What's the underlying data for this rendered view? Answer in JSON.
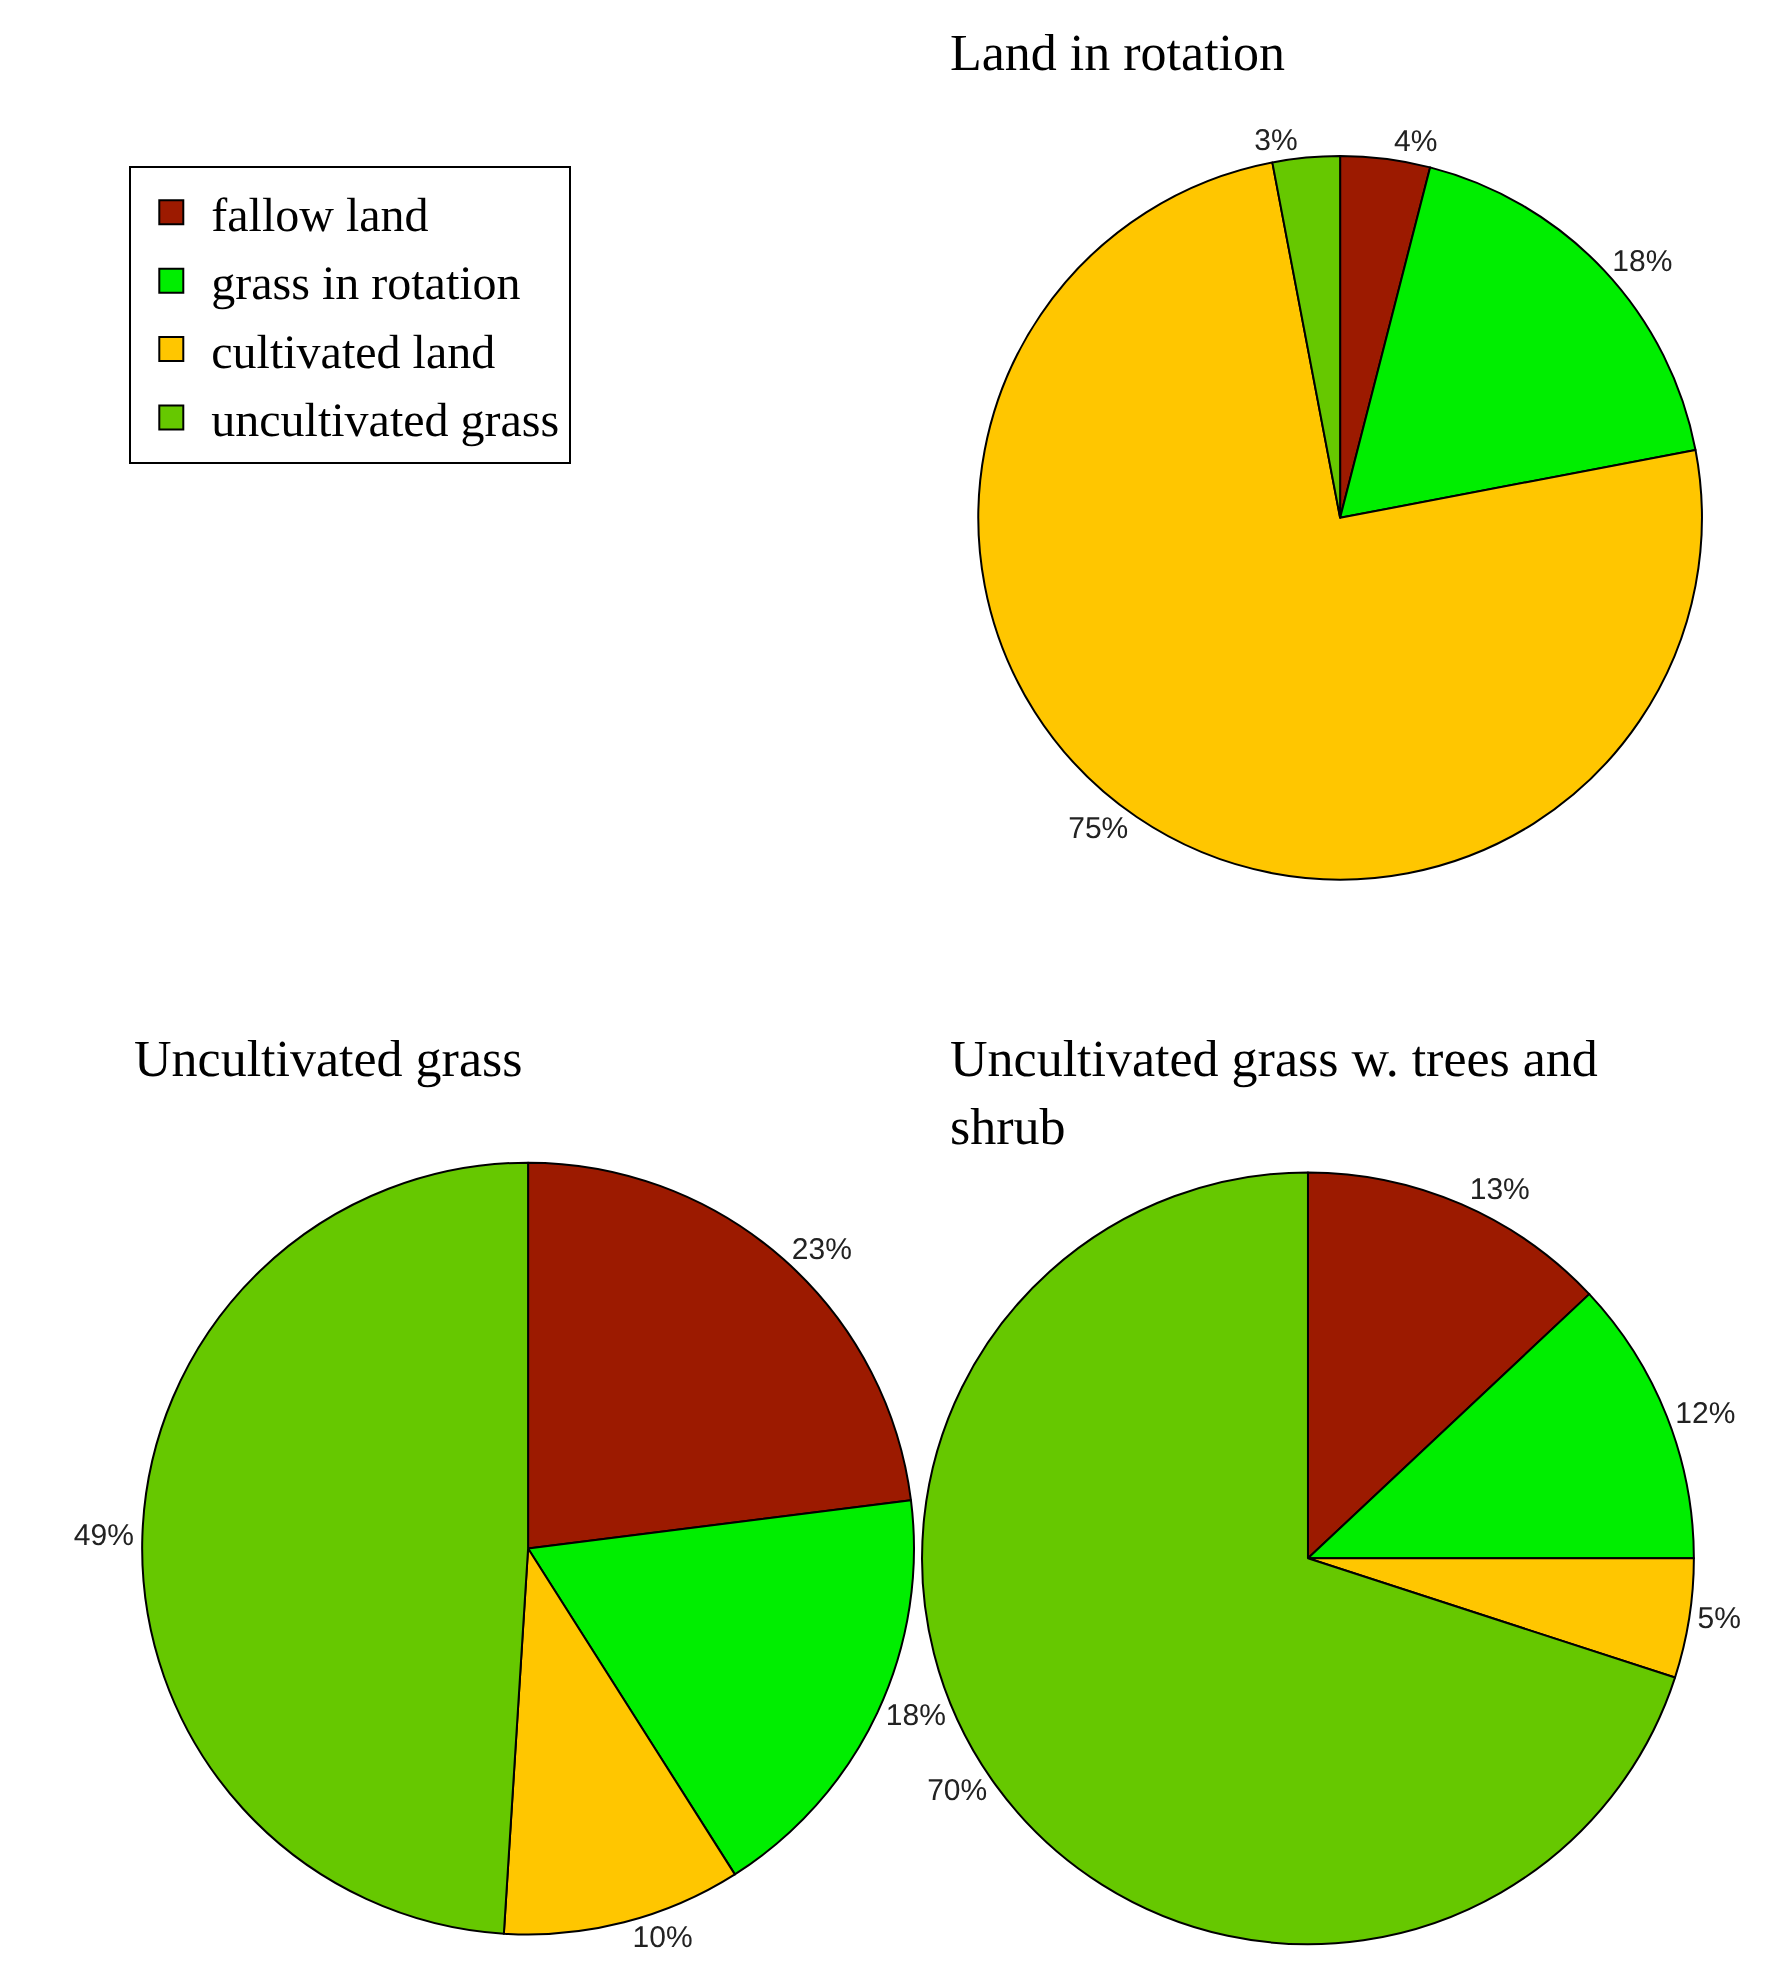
{
  "chart_data": [
    {
      "type": "pie",
      "title": "Land in rotation",
      "categories": [
        "fallow land",
        "grass in rotation",
        "cultivated land",
        "uncultivated grass"
      ],
      "values": [
        4,
        18,
        75,
        3
      ],
      "value_labels": [
        "4%",
        "18%",
        "75%",
        "3%"
      ],
      "colors": [
        "#9c1a00",
        "#00ee00",
        "#ffc600",
        "#66c800"
      ],
      "legend": "top left"
    },
    {
      "type": "pie",
      "title": "Uncultivated grass",
      "categories": [
        null,
        null,
        null,
        null
      ],
      "values": [
        23,
        18,
        10,
        49
      ],
      "value_labels": [
        "23%",
        "18%",
        "10%",
        "49%"
      ],
      "colors": [
        "#9c1a00",
        "#00ee00",
        "#ffc600",
        "#66c800"
      ]
    },
    {
      "type": "pie",
      "title": "Uncultivated grass w. trees and shrub",
      "categories": [
        null,
        null,
        null,
        null
      ],
      "values": [
        13,
        12,
        5,
        70
      ],
      "value_labels": [
        "13%",
        "12%",
        "5%",
        "70%"
      ],
      "colors": [
        "#9c1a00",
        "#00ee00",
        "#ffc600",
        "#66c800"
      ]
    }
  ]
}
